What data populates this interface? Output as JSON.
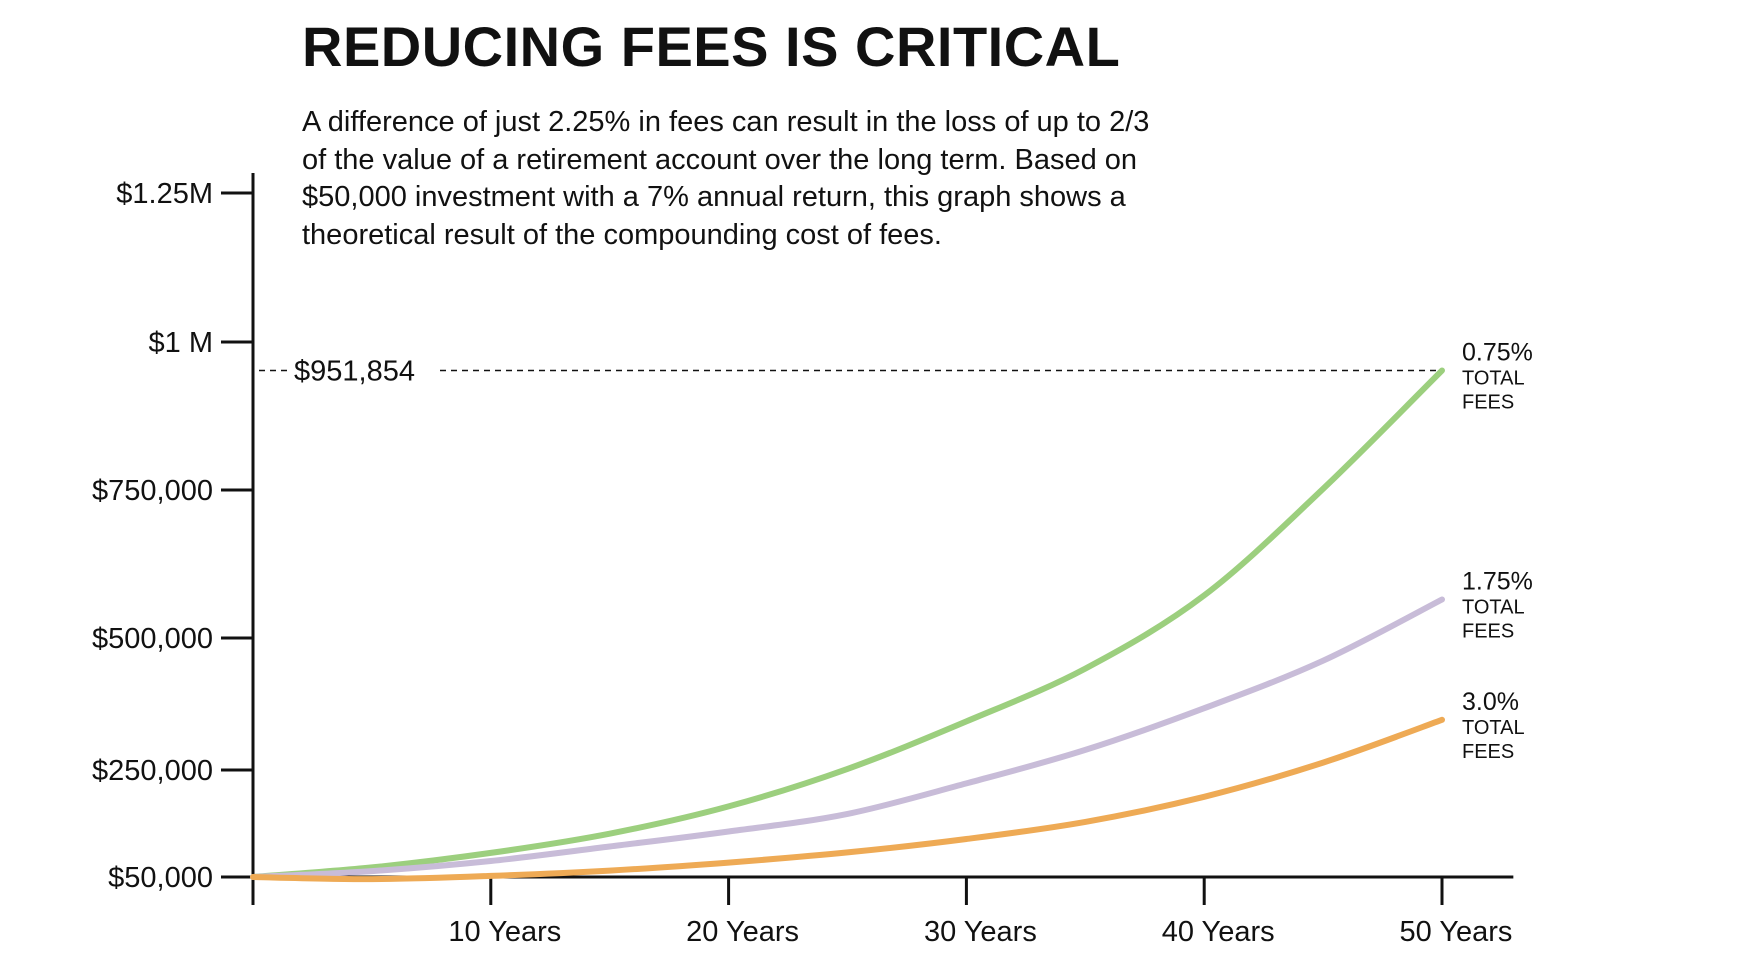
{
  "chart_data": {
    "type": "line",
    "title": "REDUCING FEES IS CRITICAL",
    "subtitle": "A difference of just 2.25% in fees can result in the loss of up to 2/3 of the value of a retirement account over the long term. Based on $50,000 investment with a 7% annual return, this graph shows a theoretical result of the compounding cost of fees.",
    "xlabel": "",
    "ylabel": "",
    "x_ticks": [
      {
        "value": 10,
        "label": "10 Years"
      },
      {
        "value": 20,
        "label": "20 Years"
      },
      {
        "value": 30,
        "label": "30 Years"
      },
      {
        "value": 40,
        "label": "40 Years"
      },
      {
        "value": 50,
        "label": "50 Years"
      }
    ],
    "y_ticks": [
      {
        "value": 50000,
        "label": "$50,000"
      },
      {
        "value": 250000,
        "label": "$250,000"
      },
      {
        "value": 500000,
        "label": "$500,000"
      },
      {
        "value": 750000,
        "label": "$750,000"
      },
      {
        "value": 1000000,
        "label": "$1 M"
      },
      {
        "value": 1250000,
        "label": "$1.25M"
      }
    ],
    "xlim": [
      0,
      53
    ],
    "ylim": [
      50000,
      1250000
    ],
    "grid": false,
    "series": [
      {
        "name": "0.75%",
        "sublabel": "TOTAL FEES",
        "color": "#9ccf7e",
        "x": [
          0,
          5,
          10,
          15,
          20,
          25,
          30,
          35,
          40,
          45,
          50
        ],
        "values": [
          50000,
          68000,
          95000,
          131000,
          182000,
          252000,
          342000,
          442000,
          572000,
          752000,
          951854
        ]
      },
      {
        "name": "1.75%",
        "sublabel": "TOTAL FEES",
        "color": "#c8bcd8",
        "x": [
          0,
          5,
          10,
          15,
          20,
          25,
          30,
          35,
          40,
          45,
          50
        ],
        "values": [
          50000,
          61000,
          80000,
          107000,
          135000,
          168000,
          225000,
          288000,
          367000,
          457000,
          565000
        ]
      },
      {
        "name": "3.0%",
        "sublabel": "TOTAL FEES",
        "color": "#eeaa55",
        "x": [
          0,
          5,
          10,
          15,
          20,
          25,
          30,
          35,
          40,
          45,
          50
        ],
        "values": [
          50000,
          46000,
          52000,
          62000,
          77000,
          96000,
          121000,
          153000,
          200000,
          264000,
          345000
        ]
      }
    ],
    "annotations": [
      {
        "type": "reference-line",
        "value": 951854,
        "label": "$951,854"
      }
    ]
  }
}
